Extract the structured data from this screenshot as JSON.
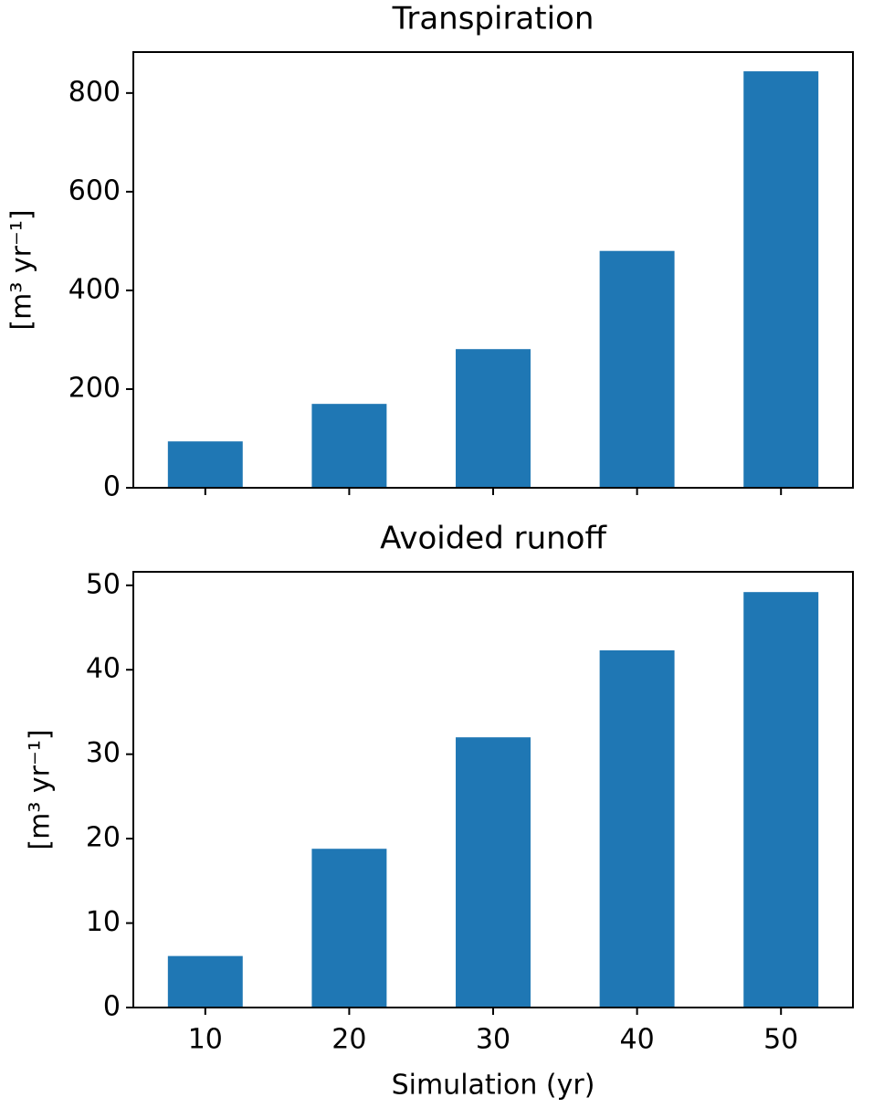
{
  "chart_data": [
    {
      "type": "bar",
      "title": "Transpiration",
      "ylabel": "[m³ yr⁻¹]",
      "values": [
        94,
        170,
        281,
        480,
        844
      ],
      "color": "#1f77b4",
      "ylim": [
        0,
        883
      ],
      "yticks": [
        0,
        200,
        400,
        600,
        800
      ]
    },
    {
      "type": "bar",
      "title": "Avoided runoff",
      "ylabel": "[m³ yr⁻¹]",
      "xlabel": "Simulation (yr)",
      "categories": [
        "10",
        "20",
        "30",
        "40",
        "50"
      ],
      "values": [
        6.1,
        18.8,
        32.0,
        42.3,
        49.2
      ],
      "color": "#1f77b4",
      "ylim": [
        0,
        51.6
      ],
      "yticks": [
        0,
        10,
        20,
        30,
        40,
        50
      ]
    }
  ]
}
